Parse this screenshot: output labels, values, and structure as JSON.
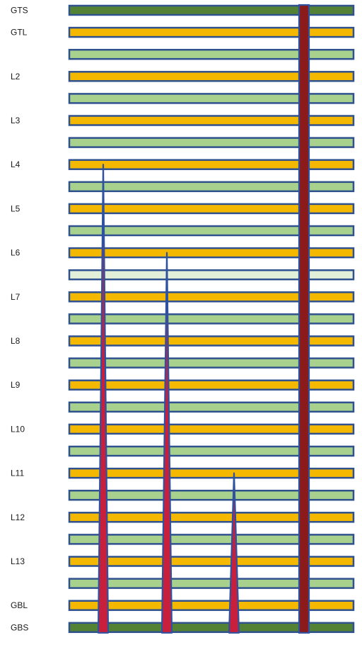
{
  "colors": {
    "signal_layer": "#f5b800",
    "plane_layer": "#a9d18e",
    "plane_layer_light": "#e2efd9",
    "outer_plane_layer": "#548235",
    "layer_outline": "#2f528f",
    "via_fill": "#c8203c",
    "through_via_fill": "#8b1a1a",
    "via_outline": "#2f52a0"
  },
  "layers": [
    {
      "label": "GTS",
      "kind": "outer"
    },
    {
      "label": "GTL",
      "kind": "signal"
    },
    {
      "label": "",
      "kind": "plane"
    },
    {
      "label": "L2",
      "kind": "signal"
    },
    {
      "label": "",
      "kind": "plane"
    },
    {
      "label": "L3",
      "kind": "signal"
    },
    {
      "label": "",
      "kind": "plane"
    },
    {
      "label": "L4",
      "kind": "signal"
    },
    {
      "label": "",
      "kind": "plane"
    },
    {
      "label": "L5",
      "kind": "signal"
    },
    {
      "label": "",
      "kind": "plane"
    },
    {
      "label": "L6",
      "kind": "signal"
    },
    {
      "label": "",
      "kind": "plane_light"
    },
    {
      "label": "L7",
      "kind": "signal"
    },
    {
      "label": "",
      "kind": "plane"
    },
    {
      "label": "L8",
      "kind": "signal"
    },
    {
      "label": "",
      "kind": "plane"
    },
    {
      "label": "L9",
      "kind": "signal"
    },
    {
      "label": "",
      "kind": "plane"
    },
    {
      "label": "L10",
      "kind": "signal"
    },
    {
      "label": "",
      "kind": "plane"
    },
    {
      "label": "L11",
      "kind": "signal"
    },
    {
      "label": "",
      "kind": "plane"
    },
    {
      "label": "L12",
      "kind": "signal"
    },
    {
      "label": "",
      "kind": "plane"
    },
    {
      "label": "L13",
      "kind": "signal"
    },
    {
      "label": "",
      "kind": "plane"
    },
    {
      "label": "GBL",
      "kind": "signal"
    },
    {
      "label": "GBS",
      "kind": "outer"
    }
  ],
  "vias": [
    {
      "name": "via-l4-to-gbs",
      "from_layer": "L4",
      "to_layer": "GBS",
      "shape": "taper"
    },
    {
      "name": "via-l6-to-gbs",
      "from_layer": "L6",
      "to_layer": "GBS",
      "shape": "taper"
    },
    {
      "name": "via-l11-to-gbs",
      "from_layer": "L11",
      "to_layer": "GBS",
      "shape": "taper"
    },
    {
      "name": "via-gts-to-gbs",
      "from_layer": "GTS",
      "to_layer": "GBS",
      "shape": "through"
    }
  ]
}
